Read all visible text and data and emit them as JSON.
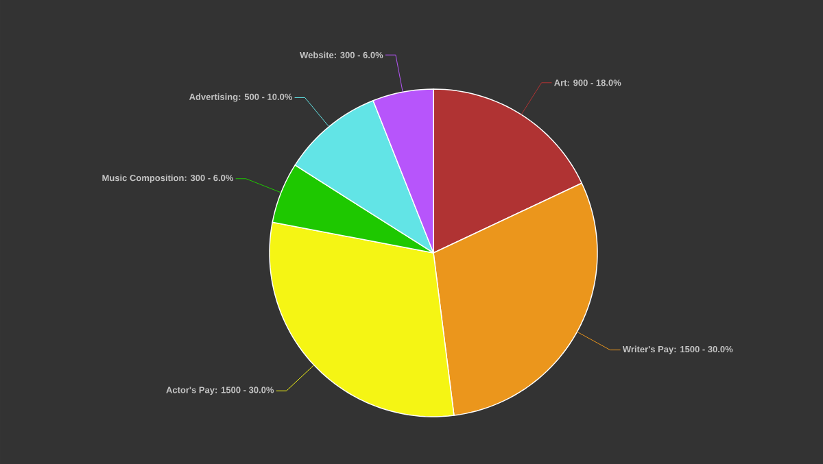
{
  "chart_data": {
    "type": "pie",
    "categories": [
      "Art",
      "Writer's Pay",
      "Actor's Pay",
      "Music Composition",
      "Advertising",
      "Website"
    ],
    "values": [
      900,
      1500,
      1500,
      300,
      500,
      300
    ],
    "colors": [
      "#b03333",
      "#eb961c",
      "#f5f514",
      "#1ec800",
      "#62e4e6",
      "#b755fb"
    ],
    "value_labels": [
      ": 900 - 18.0%",
      ": 1500 - 30.0%",
      ": 1500 - 30.0%",
      ": 300 - 6.0%",
      ": 500 - 10.0%",
      ": 300 - 6.0%"
    ]
  }
}
